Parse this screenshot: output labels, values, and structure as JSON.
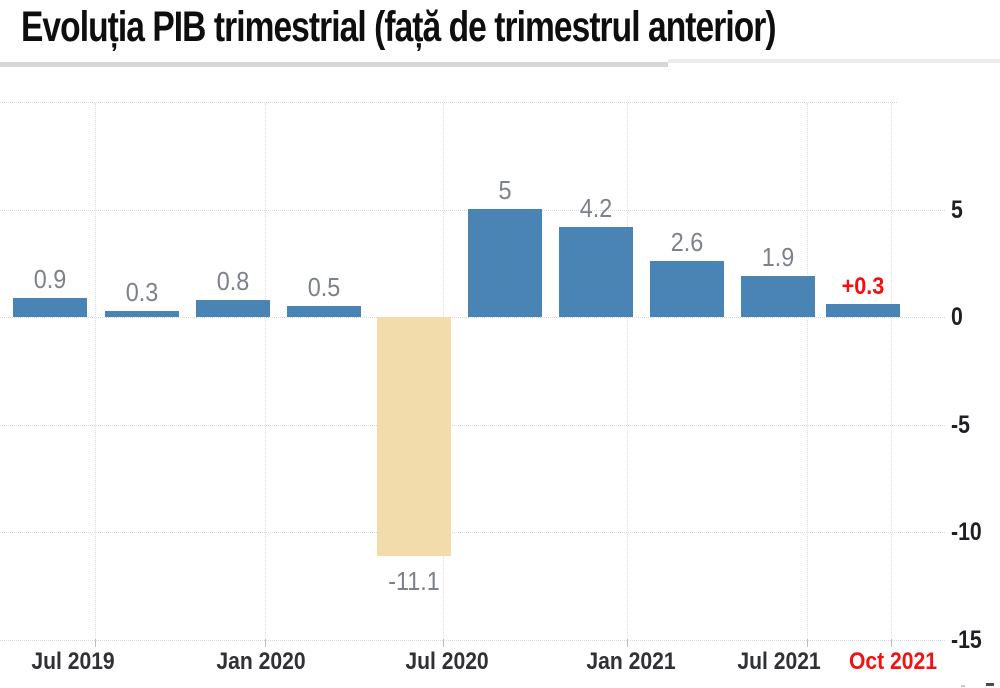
{
  "title": "Evoluția PIB trimestrial (față de trimestrul anterior)",
  "colors": {
    "bar_positive": "#4A84B4",
    "bar_negative": "#F3DCAB",
    "value_label": "#7D8189",
    "highlight_red": "#F50E0E",
    "axis_label": "#1F2023",
    "gridline": "#D9D9D9"
  },
  "chart_data": {
    "type": "bar",
    "title": "Evoluția PIB trimestrial (față de trimestrul anterior)",
    "values": [
      0.9,
      0.3,
      0.8,
      0.5,
      -11.1,
      5,
      4.2,
      2.6,
      1.9,
      0.3
    ],
    "bar_labels": [
      "0.9",
      "0.3",
      "0.8",
      "0.5",
      "-11.1",
      "5",
      "4.2",
      "2.6",
      "1.9",
      "+0.3"
    ],
    "highlight_index": 9,
    "x_tick_labels": [
      "Jul 2019",
      "Jan 2020",
      "Jul 2020",
      "Jan 2021",
      "Jul 2021",
      "Oct 2021"
    ],
    "x_highlight_index": 5,
    "y_tick_labels": [
      "5",
      "0",
      "-5",
      "-10",
      "-15"
    ],
    "y_tick_values": [
      5,
      0,
      -5,
      -10,
      -15
    ],
    "gridline_values": [
      10,
      5,
      0,
      -5,
      -10,
      -15
    ],
    "ylim": [
      -15.6,
      11.7
    ],
    "grid": "dotted",
    "legend": "none",
    "bar_color_positive": "#4A84B4",
    "bar_color_negative": "#F3DCAB",
    "value_label_color": "#7D8189",
    "highlight_color": "#F50E0E"
  }
}
